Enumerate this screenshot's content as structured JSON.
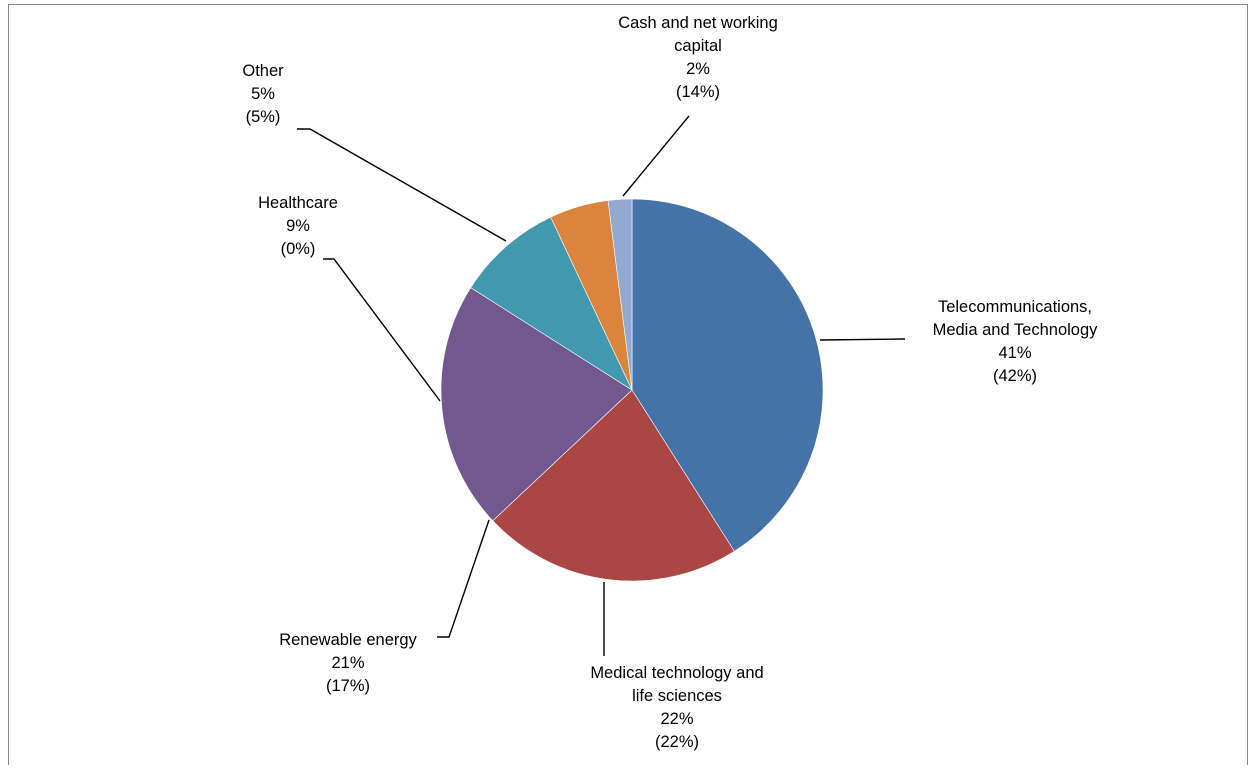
{
  "chart_data": {
    "type": "pie",
    "title": "",
    "slices": [
      {
        "label": [
          "Telecommunications,",
          "Media and Technology"
        ],
        "value": 41,
        "value_label": "41%",
        "prior_label": "(42%)",
        "color": "#4572A7"
      },
      {
        "label": [
          "Medical technology and",
          "life sciences"
        ],
        "value": 22,
        "value_label": "22%",
        "prior_label": "(22%)",
        "color": "#AA4643"
      },
      {
        "label": [
          "Renewable energy"
        ],
        "value": 21,
        "value_label": "21%",
        "prior_label": "(17%)",
        "color": "#71588F"
      },
      {
        "label": [
          "Healthcare"
        ],
        "value": 9,
        "value_label": "9%",
        "prior_label": "(0%)",
        "color": "#4198AF"
      },
      {
        "label": [
          "Other"
        ],
        "value": 5,
        "value_label": "5%",
        "prior_label": "(5%)",
        "color": "#DB843D"
      },
      {
        "label": [
          "Cash and net working",
          "capital"
        ],
        "value": 2,
        "value_label": "2%",
        "prior_label": "(14%)",
        "color": "#93A9CF"
      }
    ],
    "legend": "none"
  }
}
